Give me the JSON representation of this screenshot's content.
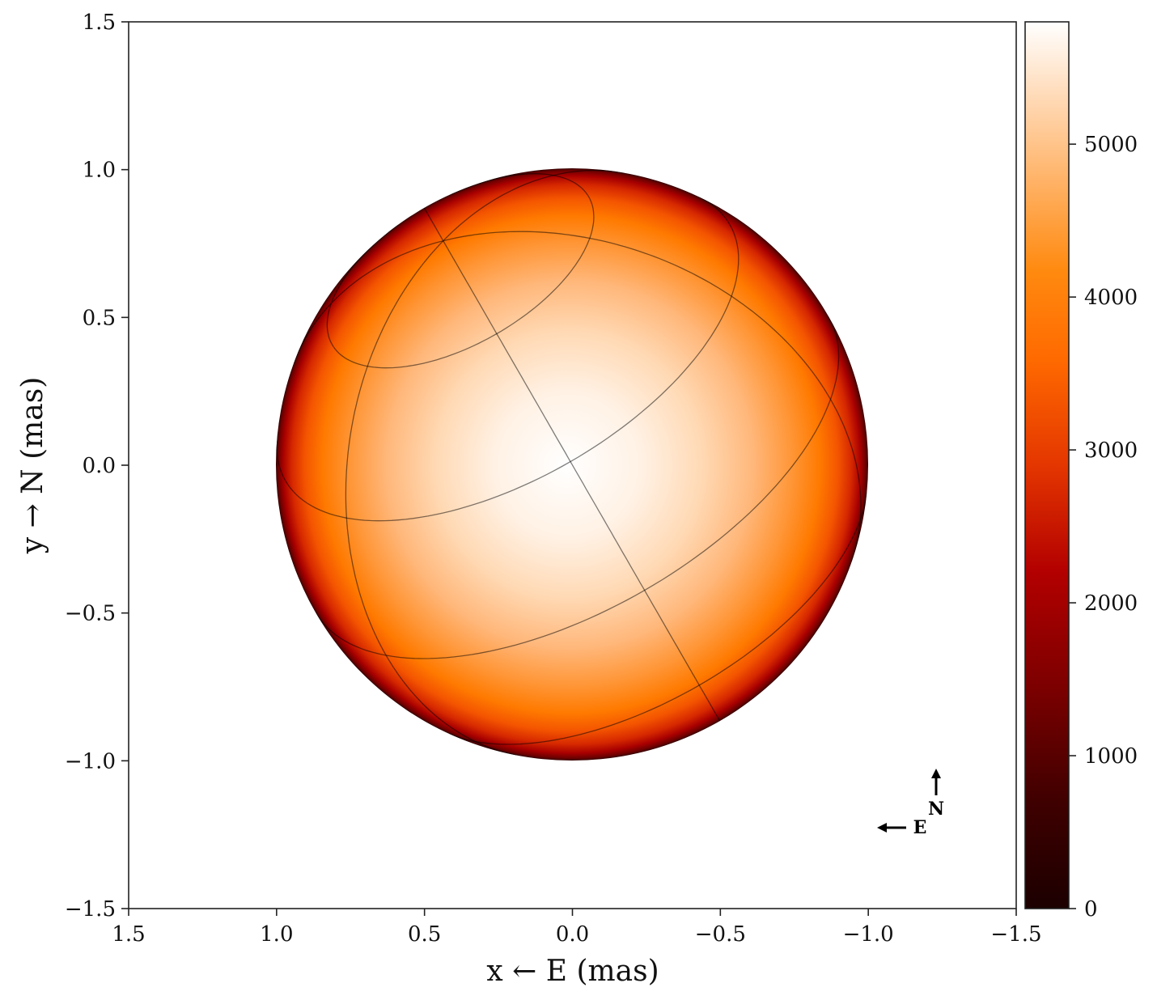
{
  "chart_data": {
    "type": "heatmap",
    "title": "",
    "description": "Projected stellar surface temperature map with limb darkening and latitude/longitude gridlines",
    "xlabel": "x ← E (mas)",
    "ylabel": "y → N (mas)",
    "xlim": [
      1.5,
      -1.5
    ],
    "ylim": [
      -1.5,
      1.5
    ],
    "x_ticks": [
      "1.5",
      "1.0",
      "0.5",
      "0.0",
      "−0.5",
      "−1.0",
      "−1.5"
    ],
    "x_tick_values": [
      1.5,
      1.0,
      0.5,
      0.0,
      -0.5,
      -1.0,
      -1.5
    ],
    "y_ticks": [
      "1.5",
      "1.0",
      "0.5",
      "0.0",
      "−0.5",
      "−1.0",
      "−1.5"
    ],
    "y_tick_values": [
      1.5,
      1.0,
      0.5,
      0.0,
      -0.5,
      -1.0,
      -1.5
    ],
    "star": {
      "center": [
        0.0,
        0.0
      ],
      "radius_mas": 1.0,
      "max_value_at": [
        0.0,
        0.0
      ],
      "limb_value": 0,
      "visible_pole_xy_mas": [
        0.435,
        0.755
      ],
      "gridlines": {
        "latitudes_deg": [
          -30,
          0,
          30,
          60
        ],
        "longitudes_deg": [
          0,
          60,
          120,
          180,
          240,
          300
        ]
      }
    },
    "colorbar": {
      "colormap": "gist_heat",
      "vmin": 0,
      "vmax": 5800,
      "ticks": [
        "0",
        "1000",
        "2000",
        "3000",
        "4000",
        "5000"
      ],
      "tick_values": [
        0,
        1000,
        2000,
        3000,
        4000,
        5000
      ]
    },
    "compass": {
      "north_label": "N",
      "east_label": "E"
    },
    "grid": false,
    "legend": null
  }
}
